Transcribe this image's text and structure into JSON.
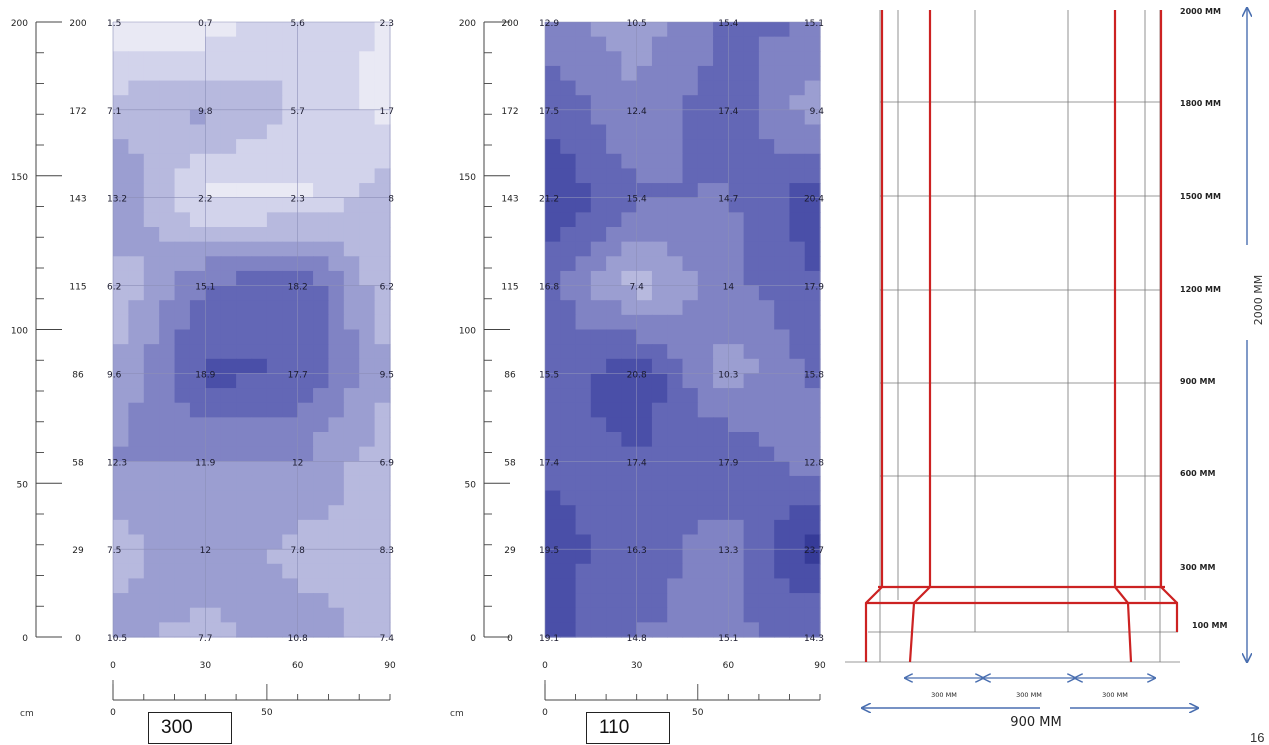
{
  "contours": [
    {
      "id": "left",
      "box_label": "300",
      "unit": "cm",
      "outer_y_ticks": [
        "200",
        "150",
        "100",
        "50",
        "0"
      ],
      "outer_x_ticks": [
        "0",
        "50"
      ],
      "row_labels": [
        "200",
        "172",
        "143",
        "115",
        "86",
        "58",
        "29",
        "0"
      ],
      "col_labels": [
        "0",
        "30",
        "60",
        "90"
      ],
      "grid": [
        [
          "1.5",
          "0.7",
          "5.6",
          "2.3"
        ],
        [
          "7.1",
          "9.8",
          "5.7",
          "1.7"
        ],
        [
          "13.2",
          "2.2",
          "2.3",
          "8"
        ],
        [
          "6.2",
          "15.1",
          "18.2",
          "6.2"
        ],
        [
          "9.6",
          "18.9",
          "17.7",
          "9.5"
        ],
        [
          "12.3",
          "11.9",
          "12",
          "6.9"
        ],
        [
          "7.5",
          "12",
          "7.8",
          "8.3"
        ],
        [
          "10.5",
          "7.7",
          "10.8",
          "7.4"
        ]
      ],
      "values": [
        [
          1.5,
          0.7,
          5.6,
          2.3
        ],
        [
          7.1,
          9.8,
          5.7,
          1.7
        ],
        [
          13.2,
          2.2,
          2.3,
          8
        ],
        [
          6.2,
          15.1,
          18.2,
          6.2
        ],
        [
          9.6,
          18.9,
          17.7,
          9.5
        ],
        [
          12.3,
          11.9,
          12,
          6.9
        ],
        [
          7.5,
          12,
          7.8,
          8.3
        ],
        [
          10.5,
          7.7,
          10.8,
          7.4
        ]
      ]
    },
    {
      "id": "right",
      "box_label": "110",
      "unit": "cm",
      "outer_y_ticks": [
        "200",
        "150",
        "100",
        "50",
        "0"
      ],
      "outer_x_ticks": [
        "0",
        "50"
      ],
      "row_labels": [
        "200",
        "172",
        "143",
        "115",
        "86",
        "58",
        "29",
        "0"
      ],
      "col_labels": [
        "0",
        "30",
        "60",
        "90"
      ],
      "grid": [
        [
          "12.9",
          "10.5",
          "15.4",
          "15.1"
        ],
        [
          "17.5",
          "12.4",
          "17.4",
          "9.4"
        ],
        [
          "21.2",
          "15.4",
          "14.7",
          "20.4"
        ],
        [
          "16.8",
          "7.4",
          "14",
          "17.9"
        ],
        [
          "15.5",
          "20.8",
          "10.3",
          "15.8"
        ],
        [
          "17.4",
          "17.4",
          "17.9",
          "12.8"
        ],
        [
          "19.5",
          "16.3",
          "13.3",
          "23.7"
        ],
        [
          "19.1",
          "14.8",
          "15.1",
          "14.3"
        ]
      ],
      "values": [
        [
          12.9,
          10.5,
          15.4,
          15.1
        ],
        [
          17.5,
          12.4,
          17.4,
          9.4
        ],
        [
          21.2,
          15.4,
          14.7,
          20.4
        ],
        [
          16.8,
          7.4,
          14,
          17.9
        ],
        [
          15.5,
          20.8,
          10.3,
          15.8
        ],
        [
          17.4,
          17.4,
          17.9,
          12.8
        ],
        [
          19.5,
          16.3,
          13.3,
          23.7
        ],
        [
          19.1,
          14.8,
          15.1,
          14.3
        ]
      ]
    }
  ],
  "level_colors": [
    "#e9e9f4",
    "#d2d3eb",
    "#b7b9de",
    "#9b9ed1",
    "#8083c4",
    "#6367b6",
    "#4a4fa8",
    "#363b98"
  ],
  "schematic": {
    "height_labels": [
      "2000 MM",
      "1800 MM",
      "1500 MM",
      "1200 MM",
      "900 MM",
      "600 MM",
      "300 MM",
      "100 MM"
    ],
    "total_height": "2000 MM",
    "bottom_spans": [
      "300 MM",
      "300 MM",
      "300 MM"
    ],
    "total_width": "900 MM",
    "line_color": "#cc2222",
    "arrow_color": "#4a6fb0"
  },
  "page_number": "16"
}
